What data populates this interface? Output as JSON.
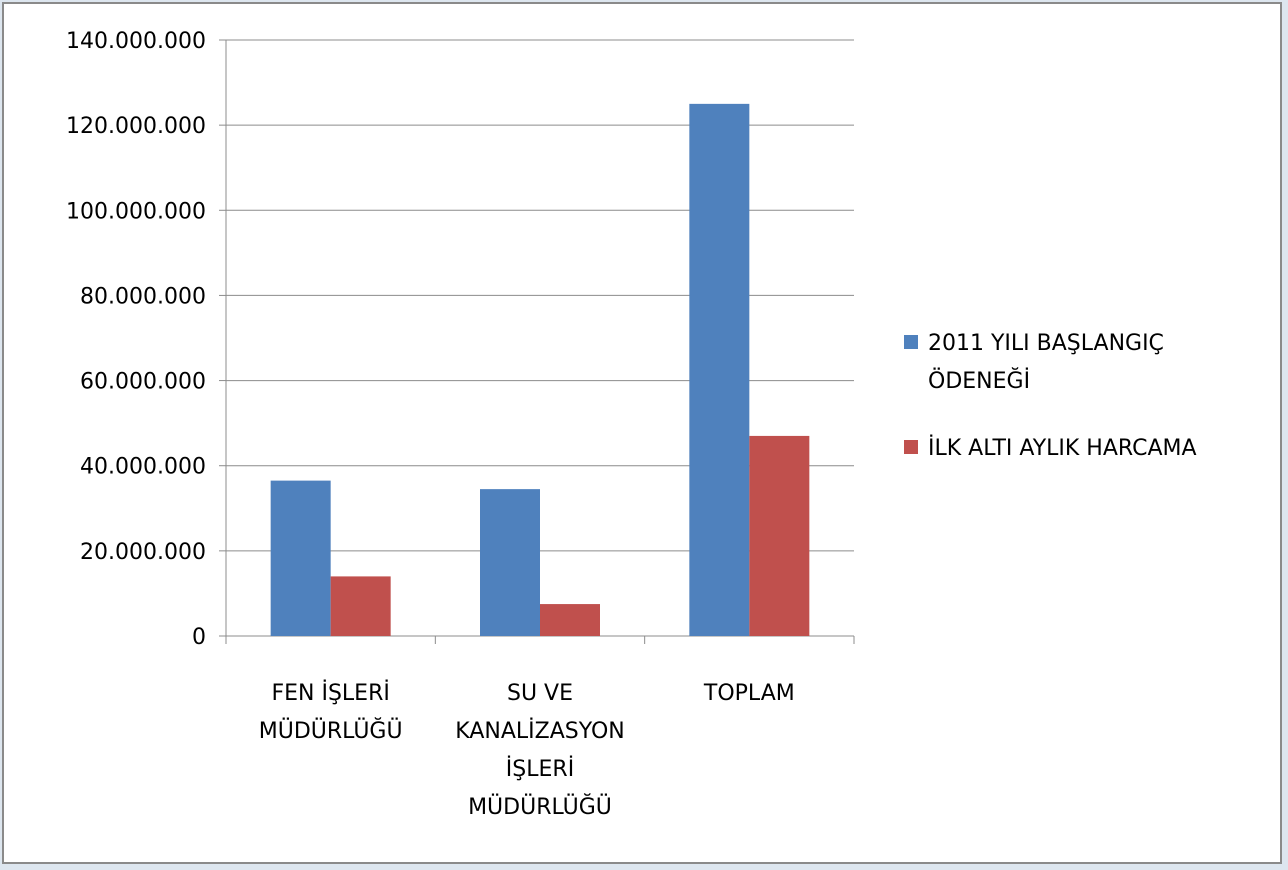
{
  "chart_data": {
    "type": "bar",
    "title": "",
    "xlabel": "",
    "ylabel": "",
    "ylim": [
      0,
      140000000
    ],
    "yticks": [
      0,
      20000000,
      40000000,
      60000000,
      80000000,
      100000000,
      120000000,
      140000000
    ],
    "ytick_labels": [
      "0",
      "20.000.000",
      "40.000.000",
      "60.000.000",
      "80.000.000",
      "100.000.000",
      "120.000.000",
      "140.000.000"
    ],
    "grid": true,
    "legend_position": "right",
    "categories": [
      [
        "FEN İŞLERİ",
        "MÜDÜRLÜĞÜ"
      ],
      [
        "SU VE",
        "KANALİZASYON",
        "İŞLERİ",
        "MÜDÜRLÜĞÜ"
      ],
      [
        "TOPLAM"
      ]
    ],
    "series": [
      {
        "name_lines": [
          "2011 YILI BAŞLANGIÇ",
          "ÖDENEĞİ"
        ],
        "color": "#4f81bd",
        "values": [
          36500000,
          34500000,
          125000000
        ]
      },
      {
        "name_lines": [
          "İLK ALTI AYLIK HARCAMA"
        ],
        "color": "#c0504d",
        "values": [
          14000000,
          7500000,
          47000000
        ]
      }
    ]
  }
}
